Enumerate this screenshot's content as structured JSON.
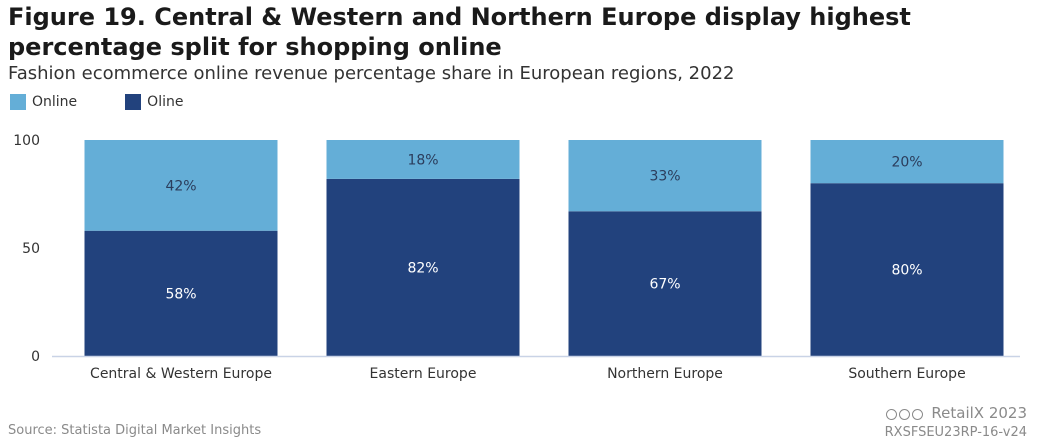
{
  "header": {
    "title": "Figure 19. Central & Western and Northern Europe display highest percentage split for shopping online",
    "subtitle": "Fashion ecommerce online revenue percentage share in European regions, 2022"
  },
  "footer": {
    "source": "Source: Statista Digital Market Insights",
    "brand": "RetailX 2023",
    "code": "RXSFSEU23RP-16-v24"
  },
  "colors": {
    "online": "#64aed7",
    "oline": "#22427d",
    "axis": "#c9d3e6"
  },
  "chart_data": {
    "type": "bar",
    "stacked": true,
    "title": "Fashion ecommerce online revenue percentage share in European regions, 2022",
    "categories": [
      "Central & Western Europe",
      "Eastern Europe",
      "Northern Europe",
      "Southern Europe"
    ],
    "series": [
      {
        "name": "Oline",
        "values": [
          58,
          82,
          67,
          80
        ],
        "labels": [
          "58%",
          "82%",
          "67%",
          "80%"
        ]
      },
      {
        "name": "Online",
        "values": [
          42,
          18,
          33,
          20
        ],
        "labels": [
          "42%",
          "18%",
          "33%",
          "20%"
        ]
      }
    ],
    "legend": [
      "Online",
      "Oline"
    ],
    "yticks": [
      "0",
      "50",
      "100"
    ],
    "ylim": [
      0,
      100
    ],
    "xlabel": "",
    "ylabel": ""
  }
}
